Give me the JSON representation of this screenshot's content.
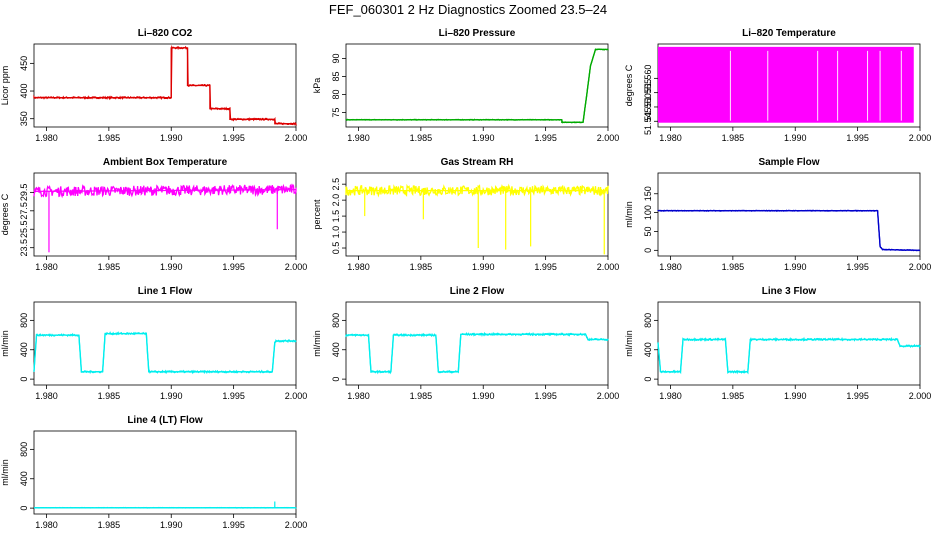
{
  "page": {
    "title": "FEF_060301 2 Hz Diagnostics Zoomed 23.5–24"
  },
  "chart_data": [
    {
      "type": "line",
      "title": "Li–820 CO2",
      "ylabel": "Licor ppm",
      "xlim": [
        1.979,
        2.0
      ],
      "xticks": [
        "1.980",
        "1.985",
        "1.990",
        "1.995",
        "2.000"
      ],
      "ylim": [
        335,
        485
      ],
      "yticks": [
        "350",
        "400",
        "450"
      ],
      "ytick_values": [
        350,
        400,
        450
      ],
      "color": "#dd0000",
      "noise": 1.5,
      "x": [
        1.979,
        1.99,
        1.99,
        1.9913,
        1.9913,
        1.9931,
        1.9931,
        1.9947,
        1.9947,
        1.9983,
        1.9983,
        2.0
      ],
      "y": [
        388,
        388,
        478,
        478,
        410,
        410,
        368,
        368,
        349,
        349,
        341,
        341
      ]
    },
    {
      "type": "line",
      "title": "Li–820 Pressure",
      "ylabel": "kPa",
      "xlim": [
        1.979,
        2.0
      ],
      "xticks": [
        "1.980",
        "1.985",
        "1.990",
        "1.995",
        "2.000"
      ],
      "ylim": [
        71,
        94
      ],
      "yticks": [
        "75",
        "80",
        "85",
        "90"
      ],
      "ytick_values": [
        75,
        80,
        85,
        90
      ],
      "color": "#00aa00",
      "noise": 0.1,
      "x": [
        1.979,
        1.9963,
        1.9963,
        1.998,
        1.9983,
        1.9986,
        1.999,
        2.0
      ],
      "y": [
        73,
        73,
        72.3,
        72.3,
        80,
        88,
        92.5,
        92.5
      ]
    },
    {
      "type": "line",
      "title": "Li–820 Temperature",
      "ylabel": "degrees C",
      "xlim": [
        1.979,
        2.0
      ],
      "xticks": [
        "1.980",
        "1.985",
        "1.990",
        "1.995",
        "2.000"
      ],
      "ylim": [
        51.543,
        51.572
      ],
      "yticks": [
        "51.545",
        "51.550",
        "51.555",
        "51.560"
      ],
      "ytick_values": [
        51.545,
        51.55,
        51.555,
        51.56
      ],
      "color": "#ff00ff",
      "fill_between": [
        51.5445,
        51.571
      ],
      "x": [
        1.979,
        1.9995
      ],
      "y": [
        51.5445,
        51.571
      ]
    },
    {
      "type": "line",
      "title": "Ambient Box Temperature",
      "ylabel": "degrees C",
      "xlim": [
        1.979,
        2.0
      ],
      "xticks": [
        "1.980",
        "1.985",
        "1.990",
        "1.995",
        "2.000"
      ],
      "ylim": [
        22.6,
        31.6
      ],
      "yticks": [
        "23.5",
        "25.5",
        "27.5",
        "29.5"
      ],
      "ytick_values": [
        23.5,
        25.5,
        27.5,
        29.5
      ],
      "color": "#ff00ff",
      "noise": 0.55,
      "x": [
        1.979,
        2.0
      ],
      "y": [
        29.6,
        29.8
      ],
      "spikes": [
        [
          1.9802,
          23.0
        ],
        [
          1.9985,
          25.5
        ]
      ]
    },
    {
      "type": "line",
      "title": "Gas Stream RH",
      "ylabel": "percent",
      "xlim": [
        1.979,
        2.0
      ],
      "xticks": [
        "1.980",
        "1.985",
        "1.990",
        "1.995",
        "2.000"
      ],
      "ylim": [
        0.25,
        2.85
      ],
      "yticks": [
        "0.5",
        "1.0",
        "1.5",
        "2.0",
        "2.5"
      ],
      "ytick_values": [
        0.5,
        1.0,
        1.5,
        2.0,
        2.5
      ],
      "color": "#ffff00",
      "noise": 0.15,
      "x": [
        1.979,
        2.0
      ],
      "y": [
        2.3,
        2.3
      ],
      "spikes": [
        [
          1.9896,
          0.5
        ],
        [
          1.9918,
          0.45
        ],
        [
          1.9938,
          0.55
        ],
        [
          1.9997,
          0.3
        ],
        [
          1.9852,
          1.4
        ],
        [
          1.9805,
          1.5
        ]
      ]
    },
    {
      "type": "line",
      "title": "Sample Flow",
      "ylabel": "ml/min",
      "xlim": [
        1.979,
        2.0
      ],
      "xticks": [
        "1.980",
        "1.985",
        "1.990",
        "1.995",
        "2.000"
      ],
      "ylim": [
        -15,
        205
      ],
      "yticks": [
        "0",
        "50",
        "100",
        "150"
      ],
      "ytick_values": [
        0,
        50,
        100,
        150
      ],
      "color": "#0000cc",
      "noise": 1.0,
      "x": [
        1.979,
        1.9966,
        1.9968,
        1.997,
        2.0
      ],
      "y": [
        105,
        105,
        10,
        2,
        0
      ]
    },
    {
      "type": "line",
      "title": "Line 1 Flow",
      "ylabel": "ml/min",
      "xlim": [
        1.979,
        2.0
      ],
      "xticks": [
        "1.980",
        "1.985",
        "1.990",
        "1.995",
        "2.000"
      ],
      "ylim": [
        -80,
        1050
      ],
      "yticks": [
        "0",
        "400",
        "800"
      ],
      "ytick_values": [
        0,
        400,
        800
      ],
      "color": "#00eeee",
      "noise": 12,
      "x": [
        1.979,
        1.9792,
        1.9826,
        1.9828,
        1.9845,
        1.9847,
        1.988,
        1.9882,
        1.9981,
        1.9983,
        1.9984,
        2.0
      ],
      "y": [
        110,
        600,
        600,
        100,
        100,
        620,
        620,
        100,
        100,
        500,
        520,
        520
      ]
    },
    {
      "type": "line",
      "title": "Line 2 Flow",
      "ylabel": "ml/min",
      "xlim": [
        1.979,
        2.0
      ],
      "xticks": [
        "1.980",
        "1.985",
        "1.990",
        "1.995",
        "2.000"
      ],
      "ylim": [
        -80,
        1050
      ],
      "yticks": [
        "0",
        "400",
        "800"
      ],
      "ytick_values": [
        0,
        400,
        800
      ],
      "color": "#00eeee",
      "noise": 12,
      "x": [
        1.979,
        1.9808,
        1.981,
        1.9826,
        1.9828,
        1.9862,
        1.9864,
        1.988,
        1.9882,
        1.9982,
        1.9984,
        2.0
      ],
      "y": [
        600,
        600,
        100,
        100,
        600,
        600,
        100,
        100,
        610,
        610,
        540,
        540
      ]
    },
    {
      "type": "line",
      "title": "Line 3 Flow",
      "ylabel": "ml/min",
      "xlim": [
        1.979,
        2.0
      ],
      "xticks": [
        "1.980",
        "1.985",
        "1.990",
        "1.995",
        "2.000"
      ],
      "ylim": [
        -80,
        1050
      ],
      "yticks": [
        "0",
        "400",
        "800"
      ],
      "ytick_values": [
        0,
        400,
        800
      ],
      "color": "#00eeee",
      "noise": 12,
      "x": [
        1.979,
        1.9792,
        1.9808,
        1.981,
        1.9844,
        1.9846,
        1.9862,
        1.9864,
        1.9982,
        1.9984,
        2.0
      ],
      "y": [
        500,
        100,
        100,
        540,
        540,
        100,
        100,
        540,
        540,
        450,
        450
      ]
    },
    {
      "type": "line",
      "title": "Line 4 (LT) Flow",
      "ylabel": "ml/min",
      "xlim": [
        1.979,
        2.0
      ],
      "xticks": [
        "1.980",
        "1.985",
        "1.990",
        "1.995",
        "2.000"
      ],
      "ylim": [
        -80,
        1050
      ],
      "yticks": [
        "0",
        "400",
        "800"
      ],
      "ytick_values": [
        0,
        400,
        800
      ],
      "color": "#00eeee",
      "noise": 2,
      "x": [
        1.979,
        2.0
      ],
      "y": [
        5,
        5
      ],
      "spikes": [
        [
          1.9983,
          90
        ]
      ]
    }
  ]
}
